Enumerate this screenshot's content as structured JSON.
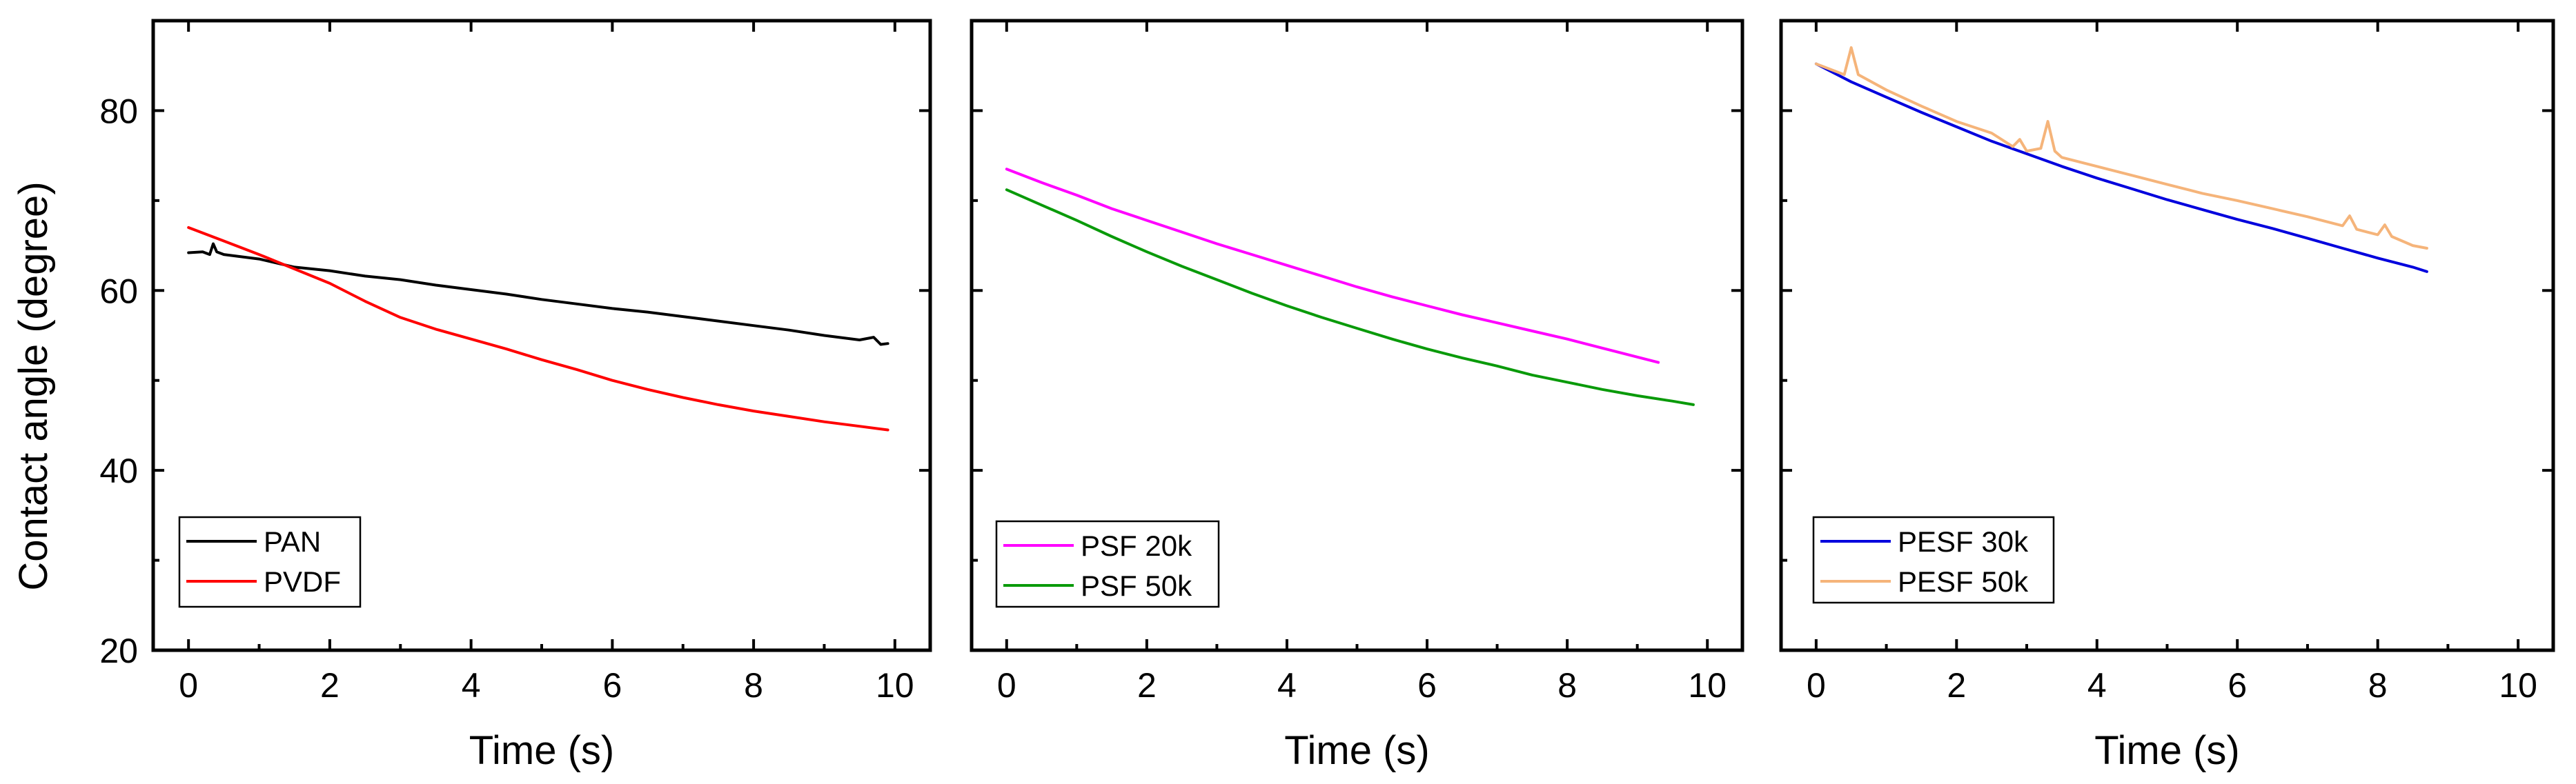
{
  "chart_data": [
    {
      "type": "line",
      "xlabel": "Time (s)",
      "ylabel": "Contact angle (degree)",
      "xlim": [
        -0.5,
        10.5
      ],
      "ylim": [
        20,
        90
      ],
      "xticks": [
        0,
        2,
        4,
        6,
        8,
        10
      ],
      "yticks": [
        20,
        40,
        60,
        80
      ],
      "legend_position": "bottom-left",
      "series": [
        {
          "name": "PAN",
          "color": "#000000",
          "x": [
            0,
            0.2,
            0.3,
            0.35,
            0.4,
            0.5,
            1,
            1.5,
            2,
            2.5,
            3,
            3.5,
            4,
            4.5,
            5,
            5.5,
            6,
            6.5,
            7,
            7.5,
            8,
            8.5,
            9,
            9.5,
            9.7,
            9.8,
            9.9
          ],
          "y": [
            64.2,
            64.3,
            64,
            65.2,
            64.3,
            64,
            63.5,
            62.6,
            62.2,
            61.6,
            61.2,
            60.6,
            60.1,
            59.6,
            59.0,
            58.5,
            58.0,
            57.6,
            57.1,
            56.6,
            56.1,
            55.6,
            55.0,
            54.5,
            54.8,
            54.0,
            54.1
          ]
        },
        {
          "name": "PVDF",
          "color": "#ff0000",
          "x": [
            0,
            0.5,
            1,
            1.5,
            2,
            2.5,
            3,
            3.5,
            4,
            4.5,
            5,
            5.5,
            6,
            6.5,
            7,
            7.5,
            8,
            8.5,
            9,
            9.5,
            9.9
          ],
          "y": [
            67,
            65.5,
            64,
            62.4,
            60.8,
            58.8,
            57.0,
            55.7,
            54.6,
            53.5,
            52.3,
            51.2,
            50.0,
            49.0,
            48.1,
            47.3,
            46.6,
            46.0,
            45.4,
            44.9,
            44.5
          ]
        }
      ]
    },
    {
      "type": "line",
      "xlabel": "Time (s)",
      "xlim": [
        -0.5,
        10.5
      ],
      "ylim": [
        20,
        90
      ],
      "xticks": [
        0,
        2,
        4,
        6,
        8,
        10
      ],
      "yticks": [
        20,
        40,
        60,
        80
      ],
      "legend_position": "bottom-left",
      "series": [
        {
          "name": "PSF 20k",
          "color": "#ff00ff",
          "x": [
            0,
            0.5,
            1,
            1.5,
            2,
            2.5,
            3,
            3.5,
            4,
            4.5,
            5,
            5.5,
            6,
            6.5,
            7,
            7.5,
            8,
            8.5,
            9,
            9.3
          ],
          "y": [
            73.5,
            72.0,
            70.6,
            69.1,
            67.8,
            66.5,
            65.2,
            64.0,
            62.8,
            61.6,
            60.4,
            59.3,
            58.3,
            57.3,
            56.4,
            55.5,
            54.6,
            53.6,
            52.6,
            52.0
          ]
        },
        {
          "name": "PSF 50k",
          "color": "#0a9a0a",
          "x": [
            0,
            0.5,
            1,
            1.5,
            2,
            2.5,
            3,
            3.5,
            4,
            4.5,
            5,
            5.5,
            6,
            6.5,
            7,
            7.5,
            8,
            8.5,
            9,
            9.5,
            9.8
          ],
          "y": [
            71.2,
            69.5,
            67.8,
            66.0,
            64.3,
            62.7,
            61.2,
            59.7,
            58.3,
            57.0,
            55.8,
            54.6,
            53.5,
            52.5,
            51.6,
            50.6,
            49.8,
            49.0,
            48.3,
            47.7,
            47.3
          ]
        }
      ]
    },
    {
      "type": "line",
      "xlabel": "Time (s)",
      "xlim": [
        -0.5,
        10.5
      ],
      "ylim": [
        20,
        90
      ],
      "xticks": [
        0,
        2,
        4,
        6,
        8,
        10
      ],
      "yticks": [
        20,
        40,
        60,
        80
      ],
      "legend_position": "bottom-left",
      "series": [
        {
          "name": "PESF 30k",
          "color": "#0000dd",
          "x": [
            0,
            0.5,
            1,
            1.5,
            2,
            2.5,
            3,
            3.5,
            4,
            4.5,
            5,
            5.5,
            6,
            6.5,
            7,
            7.5,
            8,
            8.5,
            8.7
          ],
          "y": [
            85.2,
            83.2,
            81.5,
            79.8,
            78.2,
            76.6,
            75.2,
            73.8,
            72.5,
            71.3,
            70.1,
            69.0,
            67.9,
            66.9,
            65.8,
            64.7,
            63.6,
            62.6,
            62.1
          ]
        },
        {
          "name": "PESF 50k",
          "color": "#f5b47a",
          "x": [
            0,
            0.4,
            0.5,
            0.6,
            1,
            1.5,
            2,
            2.5,
            2.8,
            2.9,
            3.0,
            3.2,
            3.3,
            3.4,
            3.5,
            4,
            4.5,
            5,
            5.5,
            6,
            6.5,
            7,
            7.5,
            7.6,
            7.7,
            8,
            8.1,
            8.2,
            8.5,
            8.7
          ],
          "y": [
            85.2,
            84.0,
            87.0,
            84.0,
            82.3,
            80.5,
            78.8,
            77.5,
            76.0,
            76.8,
            75.5,
            75.8,
            78.8,
            75.5,
            74.8,
            73.8,
            72.8,
            71.8,
            70.8,
            70.0,
            69.1,
            68.2,
            67.2,
            68.3,
            66.8,
            66.2,
            67.3,
            66.0,
            65.0,
            64.7
          ]
        }
      ]
    }
  ]
}
